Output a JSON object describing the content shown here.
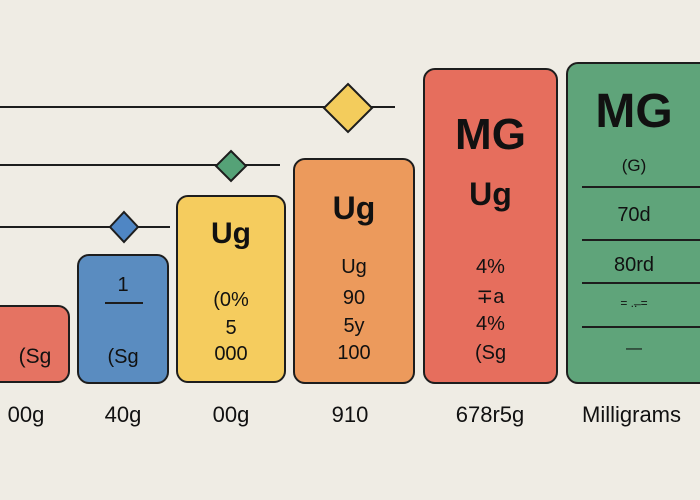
{
  "colors": {
    "background": "#efece4",
    "red": "#e57362",
    "blue": "#5a8cc0",
    "yellow": "#f5cc5e",
    "orange": "#ec9a5c",
    "green": "#5fa47a",
    "diamond_yellow": "#f3cc5c",
    "diamond_green": "#55a277",
    "diamond_blue": "#4f86c4",
    "line": "#1d1d1d"
  },
  "cards": {
    "card1": {
      "line1": "(Sg"
    },
    "card2": {
      "line1": "1",
      "line2": "(Sg"
    },
    "card3": {
      "title": "Ug",
      "line1": "(0%",
      "line2": "5",
      "line3": "000"
    },
    "card4": {
      "title": "Ug",
      "line1": "Ug",
      "line2": "90",
      "line3": "5y",
      "line4": "100"
    },
    "card5": {
      "title": "MG",
      "subtitle": "Ug",
      "line1": "4%",
      "line2": "∓a",
      "line3": "4%",
      "line4": "(Sg"
    },
    "card6": {
      "title": "MG",
      "line1": "(G)",
      "line2": "70d",
      "line3": "80rd",
      "line4": "= ..̶ =",
      "line5": "—"
    }
  },
  "labels": [
    "00g",
    "40g",
    "00g",
    "910",
    "678r5g",
    "Milligrams"
  ]
}
